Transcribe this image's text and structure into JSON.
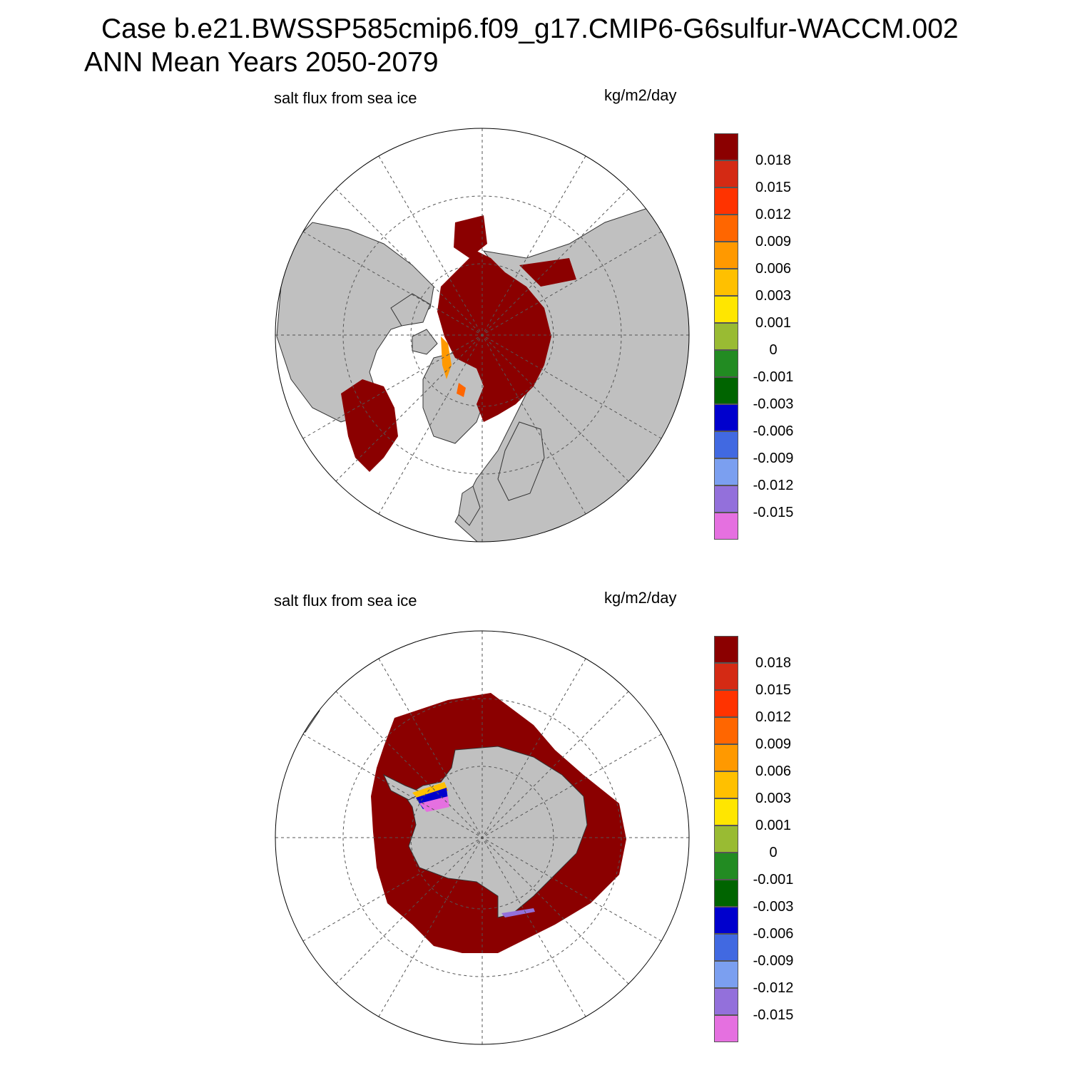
{
  "title": {
    "line1": "Case b.e21.BWSSP585cmip6.f09_g17.CMIP6-G6sulfur-WACCM.002",
    "line2": "ANN Mean    Years 2050-2079"
  },
  "colors": {
    "land": "#c0c0c0",
    "ocean": "#ffffff",
    "high_flux": "#8b0000",
    "grid_line": "#555555"
  },
  "colorbar": {
    "colors": [
      "#8b0000",
      "#d42a14",
      "#ff3300",
      "#ff6600",
      "#ff9900",
      "#ffc000",
      "#ffe600",
      "#99bb33",
      "#228b22",
      "#006400",
      "#0000cd",
      "#4169e1",
      "#7b9ff0",
      "#9370db",
      "#e570e0"
    ],
    "labels": [
      "0.018",
      "0.015",
      "0.012",
      "0.009",
      "0.006",
      "0.003",
      "0.001",
      "0",
      "-0.001",
      "-0.003",
      "-0.006",
      "-0.009",
      "-0.012",
      "-0.015"
    ]
  },
  "panels": [
    {
      "id": "north",
      "hemisphere": "Northern Hemisphere polar stereographic",
      "left_label": "salt flux from sea ice",
      "right_label": "kg/m2/day"
    },
    {
      "id": "south",
      "hemisphere": "Southern Hemisphere polar stereographic",
      "left_label": "salt flux from sea ice",
      "right_label": "kg/m2/day"
    }
  ]
}
